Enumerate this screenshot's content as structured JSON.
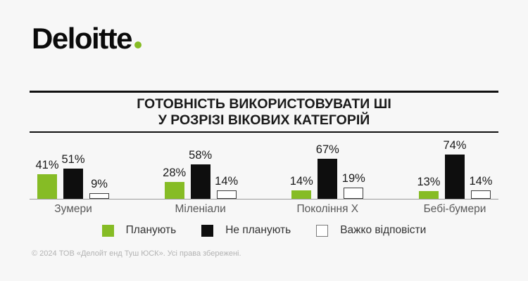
{
  "logo": {
    "wordmark": "Deloitte"
  },
  "title": {
    "line1": "ГОТОВНІСТЬ ВИКОРИСТОВУВАТИ ШІ",
    "line2": "У РОЗРІЗІ ВІКОВИХ КАТЕГОРІЙ"
  },
  "chart_data": {
    "type": "bar",
    "title": "ГОТОВНІСТЬ ВИКОРИСТОВУВАТИ ШІ У РОЗРІЗІ ВІКОВИХ КАТЕГОРІЙ",
    "categories": [
      "Зумери",
      "Міленіали",
      "Покоління X",
      "Бебі-бумери"
    ],
    "series": [
      {
        "name": "Планують",
        "values": [
          41,
          28,
          14,
          13
        ],
        "color": "#86BC25",
        "style": "filled"
      },
      {
        "name": "Не планують",
        "values": [
          51,
          58,
          67,
          74
        ],
        "color": "#0E0E0E",
        "style": "filled"
      },
      {
        "name": "Важко відповісти",
        "values": [
          9,
          14,
          19,
          14
        ],
        "color": "#FFFFFF",
        "style": "outlined",
        "border_color": "#3d3d3d"
      }
    ],
    "value_label_format": "{v}%",
    "ylim": [
      0,
      80
    ],
    "grid": false,
    "legend_position": "bottom",
    "xlabel": "",
    "ylabel": ""
  },
  "footer": {
    "copyright": "© 2024 ТОВ «Делойт енд Туш ЮСК». Усі права збережені."
  },
  "colors": {
    "background": "#F7F7F7",
    "accent_green": "#86BC25",
    "bar_black": "#0E0E0E",
    "axis_line": "#9A9A9A",
    "rule": "#101010"
  }
}
